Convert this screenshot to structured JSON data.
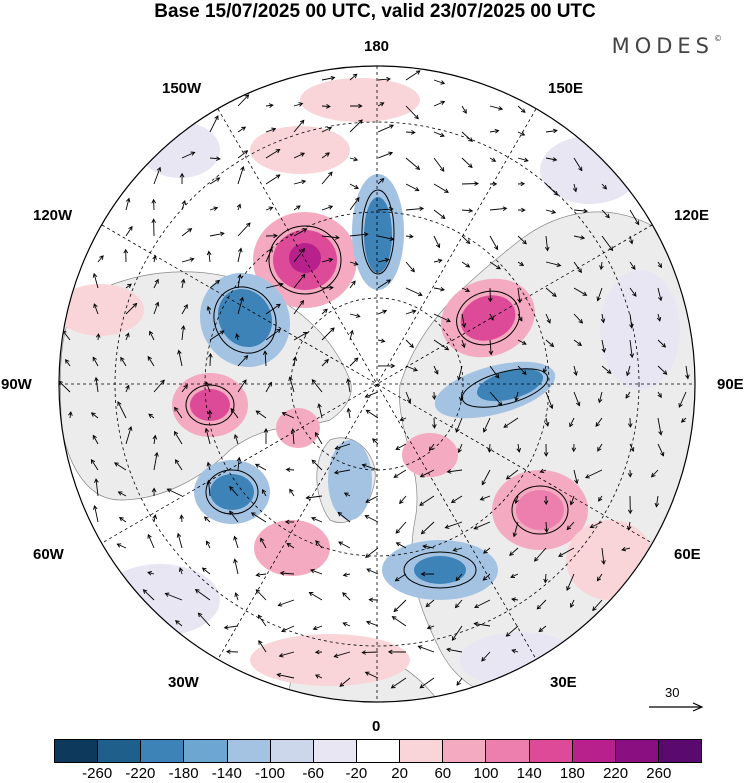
{
  "title": "Base 15/07/2025 00 UTC, valid 23/07/2025 00 UTC",
  "brand": {
    "text": "MODES",
    "mark": "©"
  },
  "longitude_labels": {
    "lon_180": "180",
    "lon_150w": "150W",
    "lon_150e": "150E",
    "lon_120w": "120W",
    "lon_120e": "120E",
    "lon_90w": "90W",
    "lon_90e": "90E",
    "lon_60w": "60W",
    "lon_60e": "60E",
    "lon_30w": "30W",
    "lon_30e": "30E",
    "lon_0": "0"
  },
  "reference_vector": {
    "value": "30"
  },
  "colorbar": {
    "colors": [
      "#0d3a5c",
      "#1f5f8b",
      "#3d83b8",
      "#6ea6d2",
      "#a4c3e3",
      "#cdd7ec",
      "#e8e6f3",
      "#ffffff",
      "#f9d5d9",
      "#f4abc1",
      "#ec7fae",
      "#dc4a98",
      "#b8218b",
      "#8a0f80",
      "#5a0a6f"
    ],
    "ticks": [
      "-260",
      "-220",
      "-180",
      "-140",
      "-100",
      "-60",
      "-20",
      "20",
      "60",
      "100",
      "140",
      "180",
      "220",
      "260"
    ]
  },
  "map": {
    "anomaly_blobs": [
      {
        "name": "positive-anomaly",
        "cat": 4,
        "color": "#f4abc1"
      },
      {
        "name": "positive-anomaly",
        "cat": 6,
        "color": "#dc4a98"
      },
      {
        "name": "negative-anomaly",
        "cat": 4,
        "color": "#a4c3e3"
      },
      {
        "name": "negative-anomaly",
        "cat": 6,
        "color": "#3d83b8"
      }
    ]
  }
}
